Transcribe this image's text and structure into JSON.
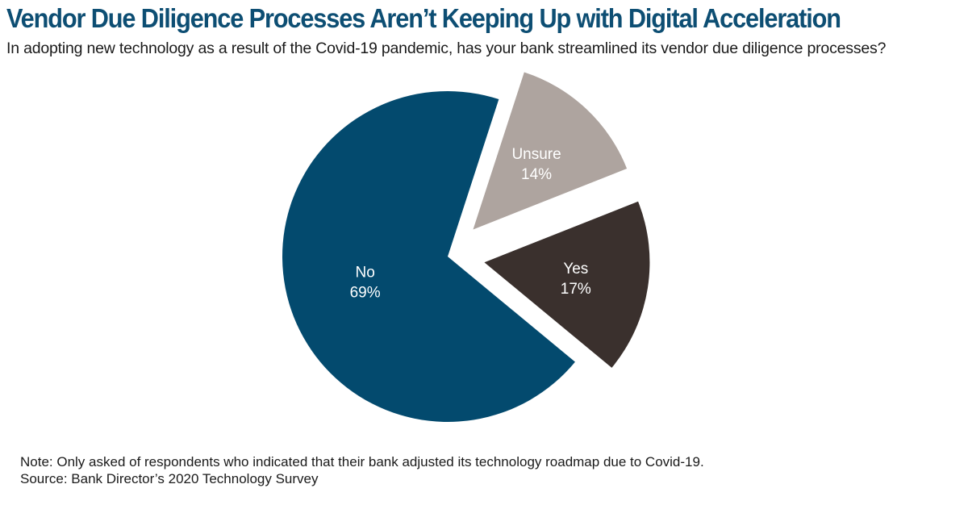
{
  "title": "Vendor Due Diligence Processes Aren’t Keeping Up with Digital Acceleration",
  "subtitle": "In adopting new technology as a result of the Covid-19 pandemic, has your bank streamlined its vendor due diligence processes?",
  "chart_data": {
    "type": "pie",
    "title": "Vendor Due Diligence Processes Aren’t Keeping Up with Digital Acceleration",
    "subtitle": "In adopting new technology as a result of the Covid-19 pandemic, has your bank streamlined its vendor due diligence processes?",
    "slices": [
      {
        "label": "Unsure",
        "value": 14,
        "display": "14%",
        "color": "#aea49f",
        "exploded": true
      },
      {
        "label": "Yes",
        "value": 17,
        "display": "17%",
        "color": "#3a302d",
        "exploded": true
      },
      {
        "label": "No",
        "value": 69,
        "display": "69%",
        "color": "#034a6e",
        "exploded": false
      }
    ]
  },
  "notes": {
    "note": "Note: Only asked of respondents who indicated that their bank adjusted its technology roadmap due to Covid-19.",
    "source": "Source: Bank Director’s 2020 Technology Survey"
  }
}
